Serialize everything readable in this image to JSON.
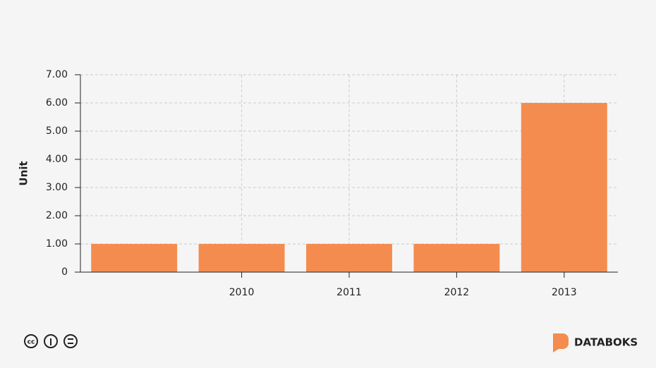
{
  "chart_data": {
    "type": "bar",
    "y_label": "Unit",
    "categories": [
      null,
      "2010",
      "2011",
      "2012",
      "2013"
    ],
    "values": [
      1,
      1,
      1,
      1,
      6
    ],
    "color": "#f48c4f",
    "ylim": [
      0,
      7
    ],
    "yticks": [
      0,
      {
        "value": 1,
        "label": "1.00"
      },
      {
        "value": 2,
        "label": "2.00"
      },
      {
        "value": 3,
        "label": "3.00"
      },
      {
        "value": 4,
        "label": "4.00"
      },
      {
        "value": 5,
        "label": "5.00"
      },
      {
        "value": 6,
        "label": "6.00"
      },
      {
        "value": 7,
        "label": "7.00"
      }
    ],
    "grid": true
  },
  "brand": "DATABOKS"
}
